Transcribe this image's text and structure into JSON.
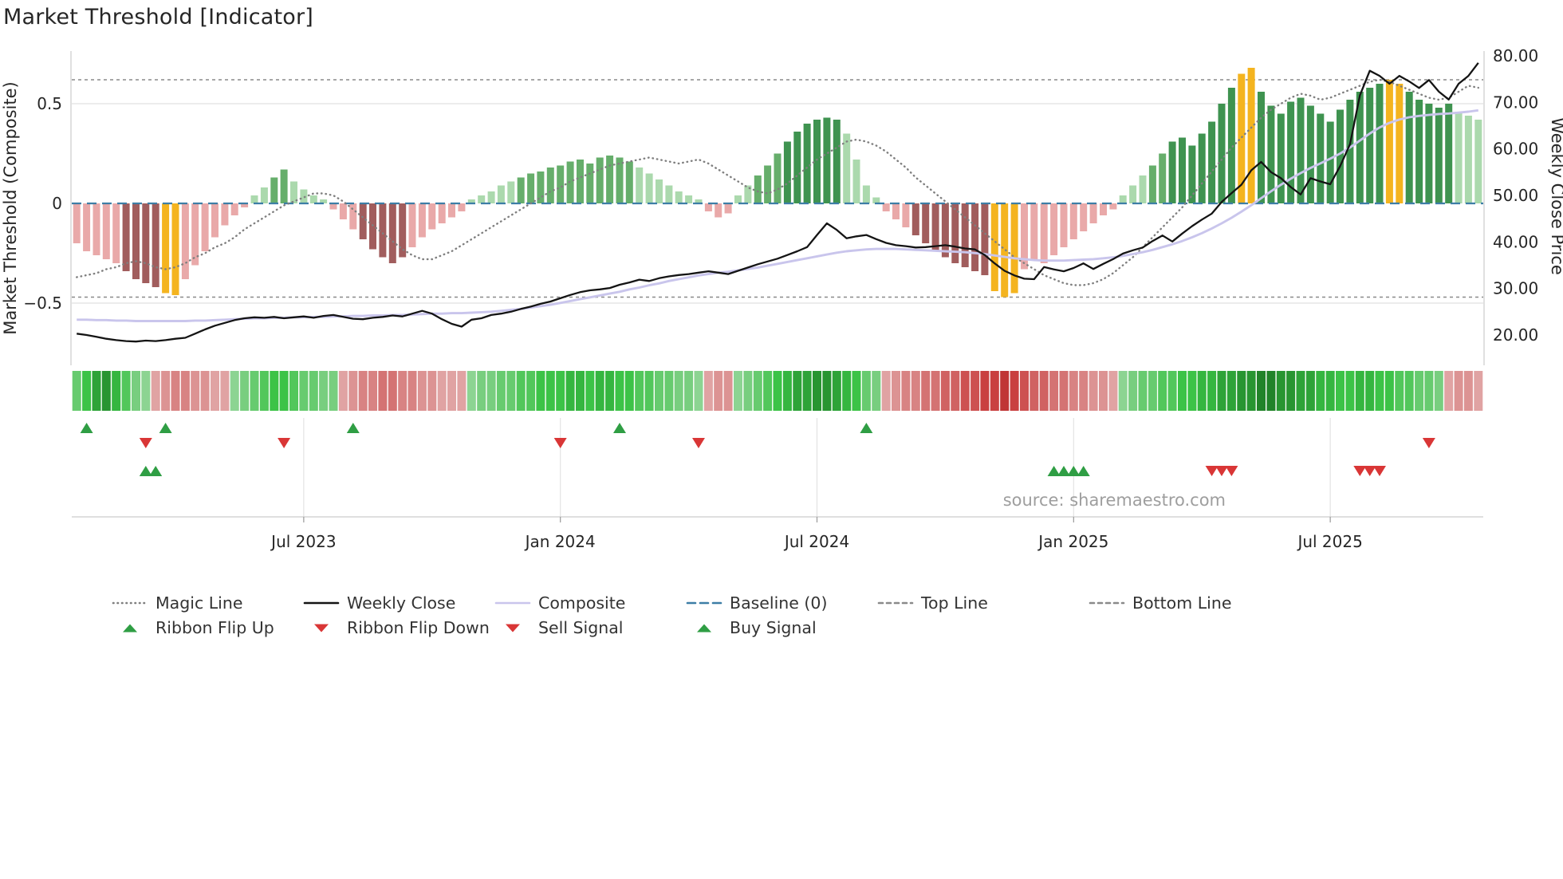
{
  "title": "Market Threshold [Indicator]",
  "source": "source: sharemaestro.com",
  "axes": {
    "left_title": "Market Threshold (Composite)",
    "right_title": "Weekly Close Price",
    "left_ticks": [
      {
        "value": 0.5,
        "label": "0.5"
      },
      {
        "value": 0,
        "label": "0"
      },
      {
        "value": -0.5,
        "label": "−0.5"
      }
    ],
    "right_ticks": [
      {
        "value": 80,
        "label": "80.00"
      },
      {
        "value": 70,
        "label": "70.00"
      },
      {
        "value": 60,
        "label": "60.00"
      },
      {
        "value": 50,
        "label": "50.00"
      },
      {
        "value": 40,
        "label": "40.00"
      },
      {
        "value": 30,
        "label": "30.00"
      },
      {
        "value": 20,
        "label": "20.00"
      }
    ],
    "x_ticks": [
      {
        "pos": 23.5,
        "label": "Jul 2023"
      },
      {
        "pos": 49.5,
        "label": "Jan 2024"
      },
      {
        "pos": 75.5,
        "label": "Jul 2024"
      },
      {
        "pos": 101.5,
        "label": "Jan 2025"
      },
      {
        "pos": 127.5,
        "label": "Jul 2025"
      }
    ]
  },
  "colors": {
    "weekly_close": "#141414",
    "composite": "#c9c5ec",
    "magic_line": "#7f7f7f",
    "baseline": "#3d7ea6",
    "guide": "#8a8a8a",
    "grid": "#e6e6e6",
    "signal_up": "#2f9e44",
    "signal_down": "#d93636",
    "source_text": "#9e9e9e",
    "bar_palette": {
      "p": "#e9a9a9",
      "dr": "#a15d5d",
      "lg": "#abd9ad",
      "g": "#66ae6b",
      "G": "#3f9350",
      "o": "#f4b41f"
    }
  },
  "chart_data": {
    "type": "bar",
    "subtype": "composite-threshold-indicator with price overlay lines",
    "n_points": 143,
    "x_unit": "weekly, Jan 2023 – Oct 2025",
    "left_axis_range": [
      -0.8,
      0.76
    ],
    "right_axis_range": [
      13.5,
      80.9
    ],
    "baseline": 0,
    "top_line": 0.62,
    "bottom_line": -0.47,
    "threshold_bars": [
      -0.2,
      -0.24,
      -0.26,
      -0.28,
      -0.3,
      -0.34,
      -0.38,
      -0.4,
      -0.42,
      -0.45,
      -0.46,
      -0.38,
      -0.31,
      -0.24,
      -0.17,
      -0.11,
      -0.06,
      -0.02,
      0.04,
      0.08,
      0.13,
      0.17,
      0.11,
      0.07,
      0.04,
      0.02,
      -0.03,
      -0.08,
      -0.13,
      -0.18,
      -0.23,
      -0.27,
      -0.3,
      -0.27,
      -0.22,
      -0.17,
      -0.13,
      -0.1,
      -0.07,
      -0.04,
      0.02,
      0.04,
      0.06,
      0.09,
      0.11,
      0.13,
      0.15,
      0.16,
      0.18,
      0.19,
      0.21,
      0.22,
      0.2,
      0.23,
      0.24,
      0.23,
      0.21,
      0.18,
      0.15,
      0.12,
      0.09,
      0.06,
      0.04,
      0.02,
      -0.04,
      -0.07,
      -0.05,
      0.04,
      0.09,
      0.14,
      0.19,
      0.25,
      0.31,
      0.36,
      0.4,
      0.42,
      0.43,
      0.42,
      0.35,
      0.22,
      0.09,
      0.03,
      -0.04,
      -0.08,
      -0.12,
      -0.16,
      -0.2,
      -0.24,
      -0.27,
      -0.3,
      -0.32,
      -0.34,
      -0.36,
      -0.44,
      -0.47,
      -0.45,
      -0.33,
      -0.28,
      -0.3,
      -0.26,
      -0.22,
      -0.18,
      -0.14,
      -0.1,
      -0.06,
      -0.03,
      0.04,
      0.09,
      0.14,
      0.19,
      0.25,
      0.31,
      0.33,
      0.29,
      0.35,
      0.41,
      0.5,
      0.58,
      0.65,
      0.68,
      0.56,
      0.49,
      0.45,
      0.51,
      0.53,
      0.49,
      0.45,
      0.41,
      0.47,
      0.52,
      0.56,
      0.58,
      0.6,
      0.62,
      0.6,
      0.56,
      0.52,
      0.5,
      0.48,
      0.5,
      0.46,
      0.44,
      0.42
    ],
    "bar_styles_rle": [
      [
        "p",
        5
      ],
      [
        "dr",
        4
      ],
      [
        "o",
        2
      ],
      [
        "p",
        7
      ],
      [
        "lg",
        2
      ],
      [
        "g",
        2
      ],
      [
        "lg",
        4
      ],
      [
        "p",
        3
      ],
      [
        "dr",
        5
      ],
      [
        "p",
        6
      ],
      [
        "lg",
        5
      ],
      [
        "g",
        12
      ],
      [
        "lg",
        7
      ],
      [
        "p",
        3
      ],
      [
        "lg",
        2
      ],
      [
        "g",
        3
      ],
      [
        "G",
        6
      ],
      [
        "lg",
        4
      ],
      [
        "p",
        3
      ],
      [
        "dr",
        8
      ],
      [
        "o",
        3
      ],
      [
        "p",
        10
      ],
      [
        "lg",
        3
      ],
      [
        "g",
        2
      ],
      [
        "G",
        7
      ],
      [
        "o",
        2
      ],
      [
        "G",
        13
      ],
      [
        "o",
        2
      ],
      [
        "G",
        5
      ],
      [
        "lg",
        3
      ]
    ],
    "weekly_close": [
      20.3,
      20.0,
      19.6,
      19.2,
      18.9,
      18.7,
      18.6,
      18.8,
      18.7,
      18.9,
      19.2,
      19.4,
      20.3,
      21.2,
      22.0,
      22.6,
      23.2,
      23.6,
      23.8,
      23.7,
      23.9,
      23.6,
      23.8,
      24.0,
      23.7,
      24.1,
      24.3,
      23.9,
      23.5,
      23.4,
      23.7,
      23.9,
      24.2,
      24.0,
      24.6,
      25.2,
      24.6,
      23.4,
      22.4,
      21.8,
      23.3,
      23.6,
      24.3,
      24.6,
      25.0,
      25.6,
      26.1,
      26.7,
      27.2,
      27.9,
      28.6,
      29.2,
      29.6,
      29.8,
      30.1,
      30.8,
      31.3,
      31.9,
      31.6,
      32.2,
      32.6,
      32.9,
      33.1,
      33.4,
      33.7,
      33.4,
      33.1,
      33.8,
      34.5,
      35.2,
      35.8,
      36.4,
      37.2,
      38.0,
      38.9,
      41.5,
      44.0,
      42.6,
      40.8,
      41.2,
      41.5,
      40.6,
      39.8,
      39.3,
      39.1,
      38.8,
      38.9,
      39.1,
      39.3,
      39.0,
      38.6,
      38.4,
      37.2,
      35.4,
      33.8,
      32.8,
      32.1,
      32.0,
      34.6,
      34.1,
      33.7,
      34.4,
      35.4,
      34.2,
      35.3,
      36.3,
      37.5,
      38.2,
      38.8,
      40.2,
      41.4,
      40.1,
      41.8,
      43.4,
      44.8,
      46.1,
      48.6,
      50.5,
      52.3,
      55.4,
      57.2,
      55.0,
      53.7,
      51.8,
      50.2,
      53.7,
      53.0,
      52.4,
      56.3,
      61.0,
      71.5,
      76.8,
      75.7,
      74.0,
      75.7,
      74.5,
      73.1,
      74.8,
      72.3,
      70.6,
      74.0,
      75.7,
      78.5
    ],
    "composite": [
      23.3,
      23.3,
      23.2,
      23.2,
      23.1,
      23.1,
      23.0,
      23.0,
      23.0,
      23.0,
      23.0,
      23.0,
      23.1,
      23.1,
      23.2,
      23.3,
      23.4,
      23.5,
      23.6,
      23.6,
      23.7,
      23.7,
      23.8,
      23.8,
      23.9,
      23.9,
      24.0,
      24.0,
      24.1,
      24.1,
      24.2,
      24.2,
      24.3,
      24.3,
      24.4,
      24.5,
      24.6,
      24.6,
      24.7,
      24.7,
      24.8,
      24.9,
      25.0,
      25.2,
      25.4,
      25.6,
      25.9,
      26.2,
      26.5,
      26.9,
      27.3,
      27.7,
      28.1,
      28.5,
      28.9,
      29.3,
      29.8,
      30.2,
      30.7,
      31.1,
      31.6,
      32.0,
      32.4,
      32.8,
      33.1,
      33.4,
      33.6,
      33.9,
      34.2,
      34.5,
      34.9,
      35.3,
      35.7,
      36.1,
      36.5,
      36.9,
      37.3,
      37.7,
      38.0,
      38.2,
      38.4,
      38.5,
      38.5,
      38.5,
      38.4,
      38.3,
      38.2,
      38.1,
      38.0,
      37.9,
      37.8,
      37.6,
      37.4,
      37.1,
      36.8,
      36.5,
      36.3,
      36.1,
      36.0,
      36.0,
      36.0,
      36.1,
      36.2,
      36.3,
      36.5,
      36.7,
      37.0,
      37.4,
      37.8,
      38.3,
      38.9,
      39.5,
      40.2,
      41.0,
      41.9,
      42.9,
      44.0,
      45.2,
      46.5,
      47.9,
      49.4,
      50.9,
      52.3,
      53.6,
      54.8,
      55.9,
      56.9,
      57.9,
      59.0,
      60.3,
      61.8,
      63.3,
      64.6,
      65.6,
      66.3,
      66.8,
      67.1,
      67.3,
      67.5,
      67.6,
      67.8,
      68.0,
      68.3
    ],
    "magic_line": [
      -0.37,
      -0.36,
      -0.35,
      -0.33,
      -0.32,
      -0.3,
      -0.29,
      -0.3,
      -0.32,
      -0.33,
      -0.32,
      -0.3,
      -0.27,
      -0.25,
      -0.22,
      -0.2,
      -0.17,
      -0.13,
      -0.1,
      -0.07,
      -0.04,
      -0.01,
      0.01,
      0.03,
      0.05,
      0.05,
      0.04,
      0.01,
      -0.03,
      -0.07,
      -0.11,
      -0.15,
      -0.19,
      -0.23,
      -0.26,
      -0.28,
      -0.28,
      -0.26,
      -0.24,
      -0.21,
      -0.18,
      -0.15,
      -0.12,
      -0.09,
      -0.06,
      -0.03,
      0.0,
      0.03,
      0.06,
      0.08,
      0.11,
      0.13,
      0.15,
      0.17,
      0.19,
      0.2,
      0.21,
      0.22,
      0.23,
      0.22,
      0.21,
      0.2,
      0.21,
      0.22,
      0.2,
      0.17,
      0.14,
      0.11,
      0.08,
      0.06,
      0.05,
      0.07,
      0.1,
      0.14,
      0.18,
      0.22,
      0.25,
      0.28,
      0.31,
      0.32,
      0.31,
      0.29,
      0.26,
      0.22,
      0.18,
      0.13,
      0.09,
      0.05,
      0.01,
      -0.03,
      -0.07,
      -0.11,
      -0.15,
      -0.19,
      -0.23,
      -0.27,
      -0.3,
      -0.33,
      -0.36,
      -0.38,
      -0.4,
      -0.41,
      -0.41,
      -0.4,
      -0.38,
      -0.35,
      -0.31,
      -0.27,
      -0.22,
      -0.17,
      -0.12,
      -0.07,
      -0.02,
      0.04,
      0.1,
      0.16,
      0.22,
      0.28,
      0.33,
      0.38,
      0.43,
      0.47,
      0.5,
      0.53,
      0.55,
      0.54,
      0.52,
      0.53,
      0.55,
      0.57,
      0.59,
      0.61,
      0.62,
      0.61,
      0.59,
      0.57,
      0.55,
      0.53,
      0.52,
      0.53,
      0.56,
      0.59,
      0.58
    ],
    "ribbon": [
      0.4,
      0.6,
      0.8,
      0.9,
      0.7,
      0.5,
      0.3,
      0.2,
      -0.2,
      -0.3,
      -0.4,
      -0.4,
      -0.3,
      -0.3,
      -0.2,
      -0.2,
      0.2,
      0.3,
      0.4,
      0.5,
      0.6,
      0.6,
      0.5,
      0.4,
      0.4,
      0.3,
      0.3,
      -0.2,
      -0.3,
      -0.4,
      -0.4,
      -0.5,
      -0.5,
      -0.4,
      -0.4,
      -0.3,
      -0.3,
      -0.2,
      -0.2,
      -0.2,
      0.2,
      0.3,
      0.3,
      0.4,
      0.4,
      0.5,
      0.5,
      0.6,
      0.6,
      0.6,
      0.7,
      0.7,
      0.6,
      0.7,
      0.7,
      0.6,
      0.6,
      0.5,
      0.5,
      0.4,
      0.4,
      0.3,
      0.3,
      0.2,
      -0.2,
      -0.3,
      -0.3,
      0.2,
      0.3,
      0.4,
      0.5,
      0.6,
      0.7,
      0.8,
      0.8,
      0.9,
      0.9,
      0.8,
      0.7,
      0.6,
      0.4,
      0.3,
      -0.2,
      -0.3,
      -0.4,
      -0.4,
      -0.5,
      -0.5,
      -0.6,
      -0.6,
      -0.7,
      -0.7,
      -0.8,
      -0.8,
      -0.9,
      -0.8,
      -0.7,
      -0.6,
      -0.6,
      -0.5,
      -0.5,
      -0.4,
      -0.4,
      -0.3,
      -0.3,
      -0.2,
      0.2,
      0.3,
      0.4,
      0.4,
      0.5,
      0.5,
      0.6,
      0.6,
      0.7,
      0.7,
      0.8,
      0.8,
      0.9,
      0.9,
      1.0,
      1.0,
      0.9,
      0.9,
      0.8,
      0.8,
      0.7,
      0.7,
      0.6,
      0.6,
      0.7,
      0.7,
      0.6,
      0.6,
      0.5,
      0.5,
      0.4,
      0.4,
      0.3,
      -0.2,
      -0.3,
      -0.3,
      -0.2
    ],
    "signals": {
      "ribbon_flip_up": [
        1,
        9,
        28,
        55,
        80
      ],
      "ribbon_flip_down": [
        7,
        21,
        49,
        63,
        137
      ],
      "buy": [
        7,
        8,
        99,
        100,
        101,
        102
      ],
      "sell": [
        115,
        116,
        117,
        130,
        131,
        132
      ]
    }
  },
  "legend": {
    "row1": [
      {
        "label": "Magic Line",
        "swatch": "dotted-line",
        "color": "#7f7f7f"
      },
      {
        "label": "Weekly Close",
        "swatch": "solid-line",
        "color": "#141414"
      },
      {
        "label": "Composite",
        "swatch": "solid-line",
        "color": "#c9c5ec"
      },
      {
        "label": "Baseline (0)",
        "swatch": "long-dashed-line",
        "color": "#3d7ea6"
      },
      {
        "label": "Top Line",
        "swatch": "dashed-line",
        "color": "#8a8a8a"
      },
      {
        "label": "Bottom Line",
        "swatch": "dashed-line",
        "color": "#8a8a8a"
      }
    ],
    "row2": [
      {
        "label": "Ribbon Flip Up",
        "swatch": "triangle-up",
        "color": "#2f9e44"
      },
      {
        "label": "Ribbon Flip Down",
        "swatch": "triangle-down",
        "color": "#d93636"
      },
      {
        "label": "Sell Signal",
        "swatch": "triangle-down",
        "color": "#d93636"
      },
      {
        "label": "Buy Signal",
        "swatch": "triangle-up",
        "color": "#2f9e44"
      }
    ]
  }
}
